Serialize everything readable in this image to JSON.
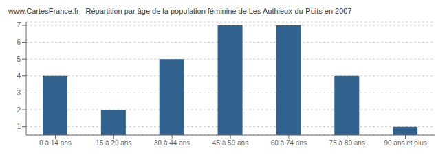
{
  "chart_data": {
    "type": "bar",
    "title": "www.CartesFrance.fr - Répartition par âge de la population féminine de Les Authieux-du-Puits en 2007",
    "categories": [
      "0 à 14 ans",
      "15 à 29 ans",
      "30 à 44 ans",
      "45 à 59 ans",
      "60 à 74 ans",
      "75 à 89 ans",
      "90 ans et plus"
    ],
    "values": [
      4,
      2,
      5,
      7,
      7,
      4,
      1
    ],
    "color": "#31628e",
    "ylim": [
      0.5,
      7.2
    ],
    "yticks": [
      1,
      2,
      3,
      4,
      5,
      6,
      7
    ],
    "grid": true
  }
}
